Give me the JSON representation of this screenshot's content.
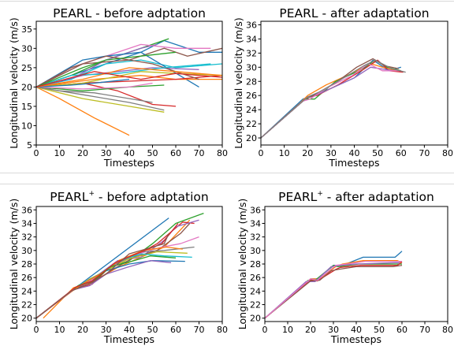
{
  "chart_data": [
    {
      "type": "line",
      "title": "PEARL - before adptation",
      "title_sup": "",
      "xlabel": "Timesteps",
      "ylabel": "Longitudinal velocity (m/s)",
      "xlim": [
        0,
        80
      ],
      "ylim": [
        5,
        37
      ],
      "xticks": [
        "0",
        "10",
        "20",
        "30",
        "40",
        "50",
        "60",
        "70",
        "80"
      ],
      "yticks": [
        "5",
        "10",
        "15",
        "20",
        "25",
        "30",
        "35"
      ],
      "grid": false,
      "series": [
        {
          "x": [
            0,
            20,
            45,
            55,
            70,
            80
          ],
          "y": [
            20,
            24,
            29,
            32,
            29,
            29
          ]
        },
        {
          "x": [
            0,
            10,
            25,
            40
          ],
          "y": [
            20,
            17,
            12,
            7.5
          ]
        },
        {
          "x": [
            0,
            15,
            30,
            45,
            57
          ],
          "y": [
            20,
            23,
            27,
            30,
            32.5
          ]
        },
        {
          "x": [
            0,
            20,
            35,
            50,
            60
          ],
          "y": [
            20,
            21,
            19,
            15.5,
            15
          ]
        },
        {
          "x": [
            0,
            15,
            30,
            45,
            52
          ],
          "y": [
            20,
            22,
            27,
            30,
            31
          ]
        },
        {
          "x": [
            0,
            20,
            40,
            55,
            65,
            80
          ],
          "y": [
            20,
            26,
            27,
            30,
            28,
            30
          ]
        },
        {
          "x": [
            0,
            15,
            30,
            45,
            60,
            75
          ],
          "y": [
            20,
            25,
            28,
            31,
            30,
            30
          ]
        },
        {
          "x": [
            0,
            20,
            40,
            55
          ],
          "y": [
            20,
            18,
            16,
            14
          ]
        },
        {
          "x": [
            0,
            20,
            40,
            55
          ],
          "y": [
            20,
            17,
            15,
            13.5
          ]
        },
        {
          "x": [
            0,
            15,
            30,
            45,
            60,
            80
          ],
          "y": [
            20,
            22,
            26,
            27,
            25,
            26
          ]
        },
        {
          "x": [
            0,
            20,
            30,
            45,
            70
          ],
          "y": [
            20,
            27,
            28,
            29,
            20
          ]
        },
        {
          "x": [
            0,
            25,
            45,
            60,
            80
          ],
          "y": [
            20,
            22,
            23,
            22,
            22
          ]
        },
        {
          "x": [
            0,
            20,
            40,
            55
          ],
          "y": [
            20,
            19,
            20,
            20.5
          ]
        },
        {
          "x": [
            0,
            20,
            40,
            60,
            80
          ],
          "y": [
            20,
            21,
            21.5,
            22,
            23
          ]
        },
        {
          "x": [
            0,
            20,
            35,
            50,
            70
          ],
          "y": [
            20,
            23,
            24,
            25,
            24.5
          ]
        },
        {
          "x": [
            0,
            15,
            30,
            50,
            70
          ],
          "y": [
            20,
            25,
            28,
            26,
            22
          ]
        },
        {
          "x": [
            0,
            20,
            40,
            50
          ],
          "y": [
            20,
            19.5,
            20,
            21
          ]
        },
        {
          "x": [
            0,
            10,
            25,
            40,
            50
          ],
          "y": [
            20,
            19,
            18.5,
            17,
            16
          ]
        },
        {
          "x": [
            0,
            20,
            45,
            60,
            80
          ],
          "y": [
            20,
            21,
            24,
            23.5,
            23
          ]
        },
        {
          "x": [
            0,
            15,
            35,
            55,
            75
          ],
          "y": [
            20,
            23,
            23.5,
            25,
            26
          ]
        },
        {
          "x": [
            0,
            15,
            25,
            40
          ],
          "y": [
            20,
            20.5,
            21,
            22
          ]
        },
        {
          "x": [
            0,
            20,
            40,
            60,
            80
          ],
          "y": [
            20,
            22,
            25,
            24,
            23
          ]
        },
        {
          "x": [
            0,
            20,
            30,
            45,
            60
          ],
          "y": [
            20,
            25,
            27,
            28,
            29
          ]
        },
        {
          "x": [
            0,
            25,
            45,
            60,
            80
          ],
          "y": [
            20,
            24,
            22,
            23.5,
            22.5
          ]
        }
      ]
    },
    {
      "type": "line",
      "title": "PEARL - after adaptation",
      "title_sup": "",
      "xlabel": "Timesteps",
      "ylabel": "Longitudinal velocity (m/s)",
      "xlim": [
        0,
        80
      ],
      "ylim": [
        19,
        36.5
      ],
      "xticks": [
        "0",
        "10",
        "20",
        "30",
        "40",
        "50",
        "60",
        "70",
        "80"
      ],
      "yticks": [
        "20",
        "22",
        "24",
        "26",
        "28",
        "30",
        "32",
        "34",
        "36"
      ],
      "grid": false,
      "series": [
        {
          "x": [
            0,
            18,
            22,
            30,
            40,
            48,
            55,
            60
          ],
          "y": [
            20,
            25.5,
            26,
            27,
            28.5,
            31,
            29.5,
            30
          ]
        },
        {
          "x": [
            0,
            17,
            20,
            28,
            38,
            47,
            52,
            58
          ],
          "y": [
            20,
            25,
            26,
            27.5,
            29,
            30.5,
            30,
            29.5
          ]
        },
        {
          "x": [
            0,
            19,
            23,
            32,
            42,
            49,
            54,
            60
          ],
          "y": [
            20,
            25.5,
            25.5,
            28,
            29.5,
            31,
            30,
            29.5
          ]
        },
        {
          "x": [
            0,
            20,
            24,
            33,
            43,
            50,
            55,
            61
          ],
          "y": [
            20,
            25.8,
            26,
            27.5,
            29.5,
            31,
            29.5,
            29.3
          ]
        },
        {
          "x": [
            0,
            20,
            22,
            30,
            40,
            47,
            51,
            57
          ],
          "y": [
            20,
            25.8,
            25.8,
            27,
            28.5,
            30,
            29.8,
            29.5
          ]
        },
        {
          "x": [
            0,
            19,
            24,
            32,
            41,
            48,
            53,
            59
          ],
          "y": [
            20,
            25.5,
            26.2,
            27.8,
            30,
            31.2,
            30.2,
            29.8
          ]
        },
        {
          "x": [
            0,
            18,
            21,
            29,
            39,
            46,
            52,
            60
          ],
          "y": [
            20,
            25.2,
            25.5,
            27.2,
            28.8,
            30.5,
            29.5,
            29.5
          ]
        },
        {
          "x": [
            0,
            20,
            25,
            34,
            44,
            49,
            56,
            62
          ],
          "y": [
            20,
            25.8,
            26.5,
            28.2,
            30.2,
            31,
            29.8,
            29.3
          ]
        }
      ]
    },
    {
      "type": "line",
      "title": "PEARL",
      "title_sup": "+",
      "title_rest": " - before adptation",
      "xlabel": "Timesteps",
      "ylabel": "Longitudinal velocity (m/s)",
      "xlim": [
        0,
        80
      ],
      "ylim": [
        19.5,
        36.5
      ],
      "xticks": [
        "0",
        "10",
        "20",
        "30",
        "40",
        "50",
        "60",
        "70",
        "80"
      ],
      "yticks": [
        "20",
        "22",
        "24",
        "26",
        "28",
        "30",
        "32",
        "34",
        "36"
      ],
      "grid": false,
      "series": [
        {
          "x": [
            0,
            15,
            57
          ],
          "y": [
            20,
            24,
            34.8
          ]
        },
        {
          "x": [
            3,
            16,
            25,
            35,
            45,
            55,
            66
          ],
          "y": [
            20,
            24.5,
            25.5,
            27.5,
            29,
            30.5,
            34.5
          ]
        },
        {
          "x": [
            0,
            17,
            25,
            32,
            40,
            50,
            60,
            72
          ],
          "y": [
            20,
            24.5,
            26,
            27.5,
            28.5,
            31,
            34,
            35.5
          ]
        },
        {
          "x": [
            0,
            16,
            24,
            33,
            44,
            52,
            63,
            68
          ],
          "y": [
            20,
            24.2,
            25,
            28,
            29.5,
            31,
            34.2,
            34
          ]
        },
        {
          "x": [
            0,
            17,
            25,
            35,
            45,
            55,
            60,
            70
          ],
          "y": [
            20,
            24.5,
            26,
            28.5,
            29,
            31.5,
            33.5,
            34.5
          ]
        },
        {
          "x": [
            0,
            16,
            24,
            32,
            42,
            52,
            62,
            66
          ],
          "y": [
            20,
            24.3,
            25.2,
            27,
            29,
            30,
            32.5,
            34
          ]
        },
        {
          "x": [
            0,
            18,
            26,
            34,
            44,
            54,
            62,
            70
          ],
          "y": [
            20,
            24.8,
            26,
            28,
            29.5,
            30.5,
            31,
            32
          ]
        },
        {
          "x": [
            0,
            17,
            24,
            33,
            45,
            55,
            68
          ],
          "y": [
            20,
            24.5,
            25.5,
            27.8,
            29.8,
            30,
            30.5
          ]
        },
        {
          "x": [
            0,
            16,
            23,
            31,
            40,
            52,
            65
          ],
          "y": [
            20,
            24.2,
            25.8,
            27.2,
            28.8,
            29.8,
            29.6
          ]
        },
        {
          "x": [
            0,
            18,
            26,
            35,
            45,
            55,
            67
          ],
          "y": [
            20,
            24.8,
            26.2,
            28.4,
            29.5,
            29.2,
            29
          ]
        },
        {
          "x": [
            0,
            17,
            22,
            30,
            40,
            50,
            64
          ],
          "y": [
            20,
            24.5,
            25.5,
            27,
            28,
            28.5,
            28.4
          ]
        },
        {
          "x": [
            0,
            19,
            27,
            36,
            46,
            56,
            63
          ],
          "y": [
            20,
            24.9,
            26.4,
            28.6,
            30,
            30.5,
            30.2
          ]
        },
        {
          "x": [
            0,
            18,
            25,
            32,
            41,
            49,
            60
          ],
          "y": [
            20,
            24.8,
            25.6,
            27.6,
            28.4,
            29.2,
            28.9
          ]
        },
        {
          "x": [
            0,
            17,
            24,
            34,
            43,
            54,
            61
          ],
          "y": [
            20,
            24.6,
            25.5,
            28.2,
            29.5,
            31,
            34
          ]
        },
        {
          "x": [
            0,
            16,
            23,
            30,
            39,
            49,
            58
          ],
          "y": [
            20,
            24.2,
            24.8,
            26.5,
            27.5,
            28.5,
            28.2
          ]
        },
        {
          "x": [
            0,
            15,
            22,
            30,
            40,
            55,
            57
          ],
          "y": [
            20,
            24,
            25,
            26.5,
            29.5,
            31,
            32.5
          ]
        }
      ]
    },
    {
      "type": "line",
      "title": "PEARL",
      "title_sup": "+",
      "title_rest": " - after adaptation",
      "xlabel": "Timesteps",
      "ylabel": "Longitudinal velocity (m/s)",
      "xlim": [
        0,
        80
      ],
      "ylim": [
        19.5,
        36.5
      ],
      "xticks": [
        "0",
        "10",
        "20",
        "30",
        "40",
        "50",
        "60",
        "70",
        "80"
      ],
      "yticks": [
        "20",
        "22",
        "24",
        "26",
        "28",
        "30",
        "32",
        "34",
        "36"
      ],
      "grid": false,
      "series": [
        {
          "x": [
            0,
            20,
            23,
            30,
            34,
            43,
            57,
            60
          ],
          "y": [
            20,
            25.8,
            25.8,
            27.8,
            27.8,
            29,
            29,
            29.9
          ]
        },
        {
          "x": [
            0,
            20,
            24,
            31,
            34,
            43,
            58,
            60
          ],
          "y": [
            20,
            25.8,
            25.8,
            27.6,
            28,
            28.5,
            28.5,
            28.2
          ]
        },
        {
          "x": [
            0,
            19,
            22,
            30,
            32,
            41,
            58,
            60
          ],
          "y": [
            20,
            25.6,
            25.6,
            27.8,
            27.6,
            28,
            28,
            28
          ]
        },
        {
          "x": [
            0,
            20,
            23,
            31,
            33,
            42,
            58,
            60
          ],
          "y": [
            20,
            25.7,
            25.5,
            27.2,
            27.5,
            27.8,
            27.8,
            28.3
          ]
        },
        {
          "x": [
            0,
            18,
            22,
            29,
            33,
            40,
            57,
            59
          ],
          "y": [
            20,
            25.4,
            25.4,
            27.6,
            27.8,
            28,
            28.2,
            28.2
          ]
        },
        {
          "x": [
            0,
            20,
            24,
            29,
            32,
            40,
            56,
            60
          ],
          "y": [
            20,
            25.5,
            25.6,
            27,
            27.2,
            27.6,
            27.6,
            27.8
          ]
        },
        {
          "x": [
            0,
            20,
            23,
            31,
            36,
            44,
            58,
            60
          ],
          "y": [
            20,
            25.8,
            25.6,
            27.8,
            28,
            28.4,
            28.4,
            28.4
          ]
        }
      ]
    }
  ]
}
